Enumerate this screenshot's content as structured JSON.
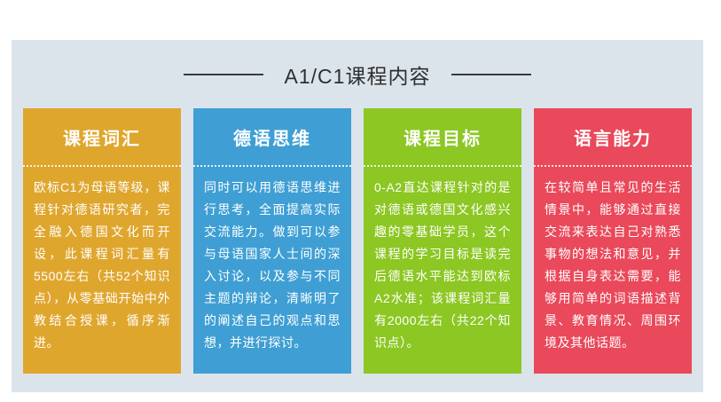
{
  "page": {
    "background": "#ffffff",
    "panel_background": "#dce4eb"
  },
  "header": {
    "title": "A1/C1课程内容",
    "title_color": "#2f2f2f"
  },
  "cards": [
    {
      "title": "课程词汇",
      "color": "#dfa62e",
      "body": "欧标C1为母语等级，课程针对德语研究者，完全融入德国文化而开设，此课程词汇量有5500左右（共52个知识点），从零基础开始中外教结合授课，循序渐进。"
    },
    {
      "title": "德语思维",
      "color": "#3f9fd4",
      "body": "同时可以用德语思维进行思考，全面提高实际交流能力。做到可以参与母语国家人士间的深入讨论，以及参与不同主题的辩论，清晰明了的阐述自己的观点和思想，并进行探讨。"
    },
    {
      "title": "课程目标",
      "color": "#8cc723",
      "body": "0-A2直达课程针对的是对德语或德国文化感兴趣的零基础学员，这个课程的学习目标是读完后德语水平能达到欧标A2水准；该课程词汇量有2000左右（共22个知识点）。"
    },
    {
      "title": "语言能力",
      "color": "#e9495a",
      "body": "在较简单且常见的生活情景中，能够通过直接交流来表达自己对熟悉事物的想法和意见，并根据自身表达需要，能够用简单的词语描述背景、教育情况、周围环境及其他话题。"
    }
  ]
}
